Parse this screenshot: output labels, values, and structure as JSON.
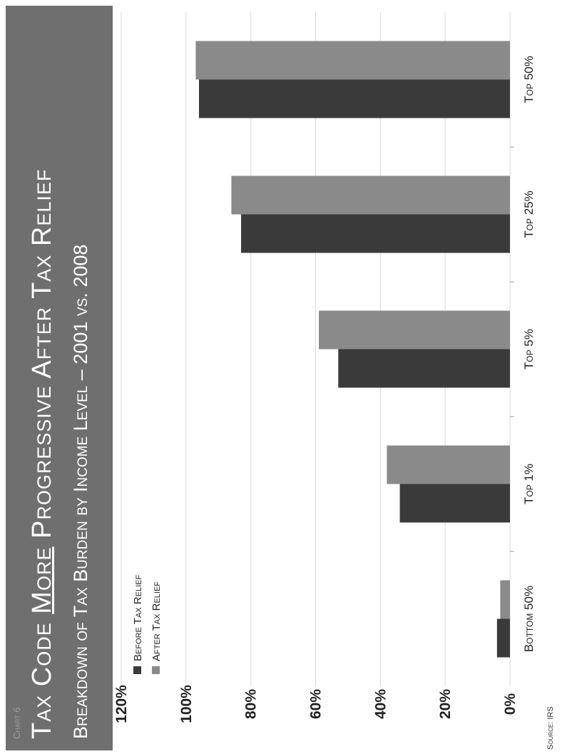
{
  "banner": {
    "chart_label": "Chart 6",
    "title_part1": "Tax Code ",
    "title_emphasis": "More",
    "title_part2": " Progressive After Tax Relief",
    "subtitle": "Breakdown of Tax Burden by Income Level – 2001 vs. 2008"
  },
  "source": "Source: IRS",
  "colors": {
    "banner": "#6f6f6f",
    "before": "#3a3a3a",
    "after": "#8a8a8a",
    "grid": "#d9d9d9"
  },
  "chart_data": {
    "type": "bar",
    "orientation": "vertical",
    "categories": [
      "Bottom 50%",
      "Top 1%",
      "Top 5%",
      "Top 25%",
      "Top 50%"
    ],
    "series": [
      {
        "name": "Before Tax Relief",
        "values": [
          4,
          34,
          53,
          83,
          96
        ]
      },
      {
        "name": "After Tax Relief",
        "values": [
          3,
          38,
          59,
          86,
          97
        ]
      }
    ],
    "yticks": [
      "0%",
      "20%",
      "40%",
      "60%",
      "80%",
      "100%",
      "120%"
    ],
    "ylim": [
      0,
      120
    ],
    "grid": true,
    "legend": "top-left"
  }
}
